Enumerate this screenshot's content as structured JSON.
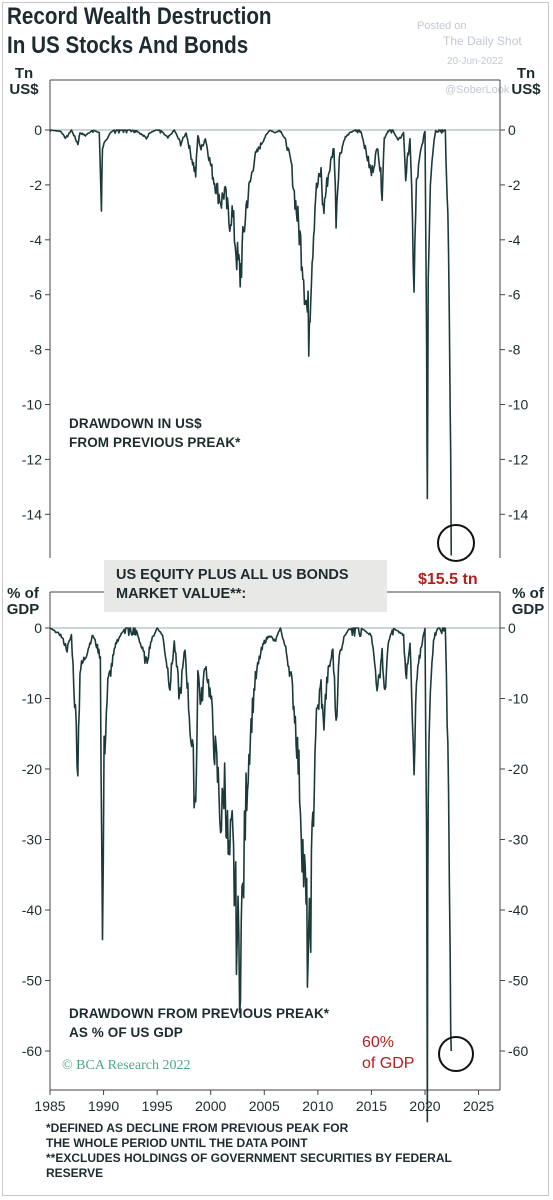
{
  "title_line1": "Record Wealth Destruction",
  "title_line2": "In US Stocks And Bonds",
  "watermark": {
    "posted": "Posted on",
    "source": "The Daily Shot",
    "date": "20-Jun-2022",
    "handle": "@SoberLook"
  },
  "top_panel": {
    "unit_line1": "Tn",
    "unit_line2": "US$",
    "label_line1": "DRAWDOWN IN US$",
    "label_line2": "FROM PREVIOUS PREAK*",
    "callout": "$15.5 tn"
  },
  "legend": {
    "line1": "US EQUITY PLUS ALL US BONDS",
    "line2": "MARKET VALUE**:"
  },
  "bottom_panel": {
    "unit_line1": "% of",
    "unit_line2": "GDP",
    "label_line1": "DRAWDOWN FROM PREVIOUS PREAK*",
    "label_line2": "AS % OF US GDP",
    "callout_line1": "60%",
    "callout_line2": "of GDP"
  },
  "credit": "© BCA Research 2022",
  "footnote1_line1": "*DEFINED AS DECLINE FROM PREVIOUS PEAK FOR",
  "footnote1_line2": "THE WHOLE PERIOD UNTIL THE DATA POINT",
  "footnote2_line1": "**EXCLUDES HOLDINGS OF GOVERNMENT SECURITIES BY FEDERAL",
  "footnote2_line2": "RESERVE",
  "colors": {
    "line": "#1d3a3a",
    "callout": "#b21f1f",
    "legend_bg": "#e8e8e6",
    "credit": "#4aa88a"
  },
  "chart_data": [
    {
      "type": "area",
      "name": "top",
      "title": "Record Wealth Destruction In US Stocks And Bonds",
      "ylabel": "Tn US$",
      "ylim": [
        -16,
        0.5
      ],
      "yticks": [
        0,
        -2,
        -4,
        -6,
        -8,
        -10,
        -12,
        -14
      ],
      "xlim": [
        1985,
        2027
      ],
      "xticks": [
        1985,
        1990,
        1995,
        2000,
        2005,
        2010,
        2015,
        2020,
        2025
      ],
      "series": [
        {
          "name": "US EQUITY PLUS ALL US BONDS MARKET VALUE",
          "x": [
            1985,
            1986,
            1986.5,
            1987.0,
            1987.6,
            1987.8,
            1988.3,
            1989.0,
            1989.6,
            1989.8,
            1989.9,
            1990.3,
            1990.6,
            1991.0,
            1992,
            1993,
            1994.0,
            1994.3,
            1994.9,
            1995.3,
            1996,
            1996.6,
            1997.2,
            1997.7,
            1998.1,
            1998.6,
            1998.8,
            1999.1,
            1999.5,
            1999.9,
            2000.3,
            2000.7,
            2001.0,
            2001.3,
            2001.7,
            2002.0,
            2002.5,
            2002.75,
            2003.0,
            2003.3,
            2003.7,
            2004.1,
            2004.6,
            2005.0,
            2005.5,
            2006.0,
            2006.5,
            2007.0,
            2007.5,
            2007.8,
            2008.2,
            2008.6,
            2008.9,
            2009.15,
            2009.4,
            2009.8,
            2010.3,
            2010.5,
            2010.9,
            2011.5,
            2011.7,
            2012.0,
            2012.5,
            2013.0,
            2013.5,
            2014.0,
            2015.0,
            2015.6,
            2016.0,
            2016.2,
            2016.6,
            2017.0,
            2017.5,
            2018.0,
            2018.2,
            2018.6,
            2018.98,
            2019.2,
            2019.6,
            2020.0,
            2020.15,
            2020.22,
            2020.3,
            2020.5,
            2020.8,
            2021.0,
            2021.5,
            2021.9,
            2022.0,
            2022.2,
            2022.35,
            2022.45
          ],
          "values": [
            0,
            -0.05,
            -0.3,
            0,
            -0.5,
            -0.1,
            -0.2,
            0,
            -0.1,
            -2.7,
            -0.6,
            -0.4,
            -0.1,
            0,
            0,
            0,
            -0.3,
            -0.1,
            0,
            0,
            -0.3,
            0,
            -0.5,
            -0.1,
            -0.8,
            -1.6,
            -0.2,
            -0.7,
            -0.3,
            -1.1,
            -1.8,
            -2.3,
            -2.6,
            -2.2,
            -3.3,
            -3.0,
            -4.8,
            -5.3,
            -4.2,
            -2.8,
            -1.9,
            -1.0,
            -0.6,
            -0.3,
            0,
            -0.1,
            0,
            -0.4,
            -1.2,
            -2.3,
            -3.5,
            -4.8,
            -6.2,
            -7.2,
            -5.0,
            -2.3,
            -1.5,
            -3.0,
            -1.8,
            -0.6,
            -3.1,
            -1.0,
            -0.3,
            -0.1,
            0,
            0,
            -1.6,
            -0.6,
            -2.2,
            -0.3,
            0,
            0,
            -0.4,
            -0.1,
            -1.7,
            -0.3,
            -5.6,
            -2.0,
            -0.8,
            0,
            -7.5,
            -12.8,
            -5.0,
            -1.8,
            -0.5,
            0,
            0,
            0,
            -1.8,
            -4.3,
            -10.5,
            -15.5
          ]
        }
      ]
    },
    {
      "type": "area",
      "name": "bottom",
      "ylabel": "% of GDP",
      "ylim": [
        -65,
        1
      ],
      "yticks": [
        0,
        -10,
        -20,
        -30,
        -40,
        -50,
        -60
      ],
      "xlim": [
        1985,
        2027
      ],
      "xticks": [
        1985,
        1990,
        1995,
        2000,
        2005,
        2010,
        2015,
        2020,
        2025
      ],
      "series": [
        {
          "name": "DRAWDOWN FROM PREVIOUS PREAK AS % OF US GDP",
          "x": [
            1985,
            1986,
            1986.6,
            1987.0,
            1987.6,
            1987.8,
            1988.3,
            1989.0,
            1989.7,
            1989.9,
            1990.05,
            1990.4,
            1990.8,
            1991.2,
            1992,
            1993,
            1994.0,
            1994.4,
            1995.0,
            1995.5,
            1996.2,
            1996.6,
            1997.1,
            1997.6,
            1998.0,
            1998.6,
            1998.8,
            1999.1,
            1999.5,
            2000.0,
            2000.3,
            2000.7,
            2001.0,
            2001.3,
            2001.7,
            2002.0,
            2002.4,
            2002.7,
            2003.0,
            2003.3,
            2003.7,
            2004.1,
            2004.6,
            2005.0,
            2005.5,
            2006.0,
            2006.5,
            2007.0,
            2007.5,
            2007.9,
            2008.3,
            2008.6,
            2008.9,
            2009.15,
            2009.4,
            2009.8,
            2010.3,
            2010.5,
            2010.9,
            2011.4,
            2011.7,
            2012.0,
            2012.5,
            2013.0,
            2014.0,
            2015.0,
            2015.6,
            2016.0,
            2016.2,
            2016.6,
            2017.0,
            2018.0,
            2018.2,
            2018.6,
            2018.98,
            2019.2,
            2019.6,
            2020.0,
            2020.15,
            2020.22,
            2020.3,
            2020.5,
            2020.8,
            2021.0,
            2021.5,
            2021.9,
            2022.0,
            2022.2,
            2022.35,
            2022.45
          ],
          "values": [
            0,
            -1.0,
            -3.0,
            -1.0,
            -19.0,
            -6.0,
            -4.0,
            -1.0,
            -4.0,
            -46.5,
            -18.0,
            -8.0,
            -5.0,
            -2.0,
            0,
            0,
            -5.0,
            -2.0,
            0,
            -1.0,
            -8.0,
            -2.0,
            -10.0,
            -3.0,
            -12.0,
            -25.0,
            -6.0,
            -11.0,
            -5.0,
            -10.0,
            -16.0,
            -22.0,
            -28.0,
            -21.0,
            -34.0,
            -30.0,
            -42.0,
            -47.5,
            -38.0,
            -24.0,
            -15.0,
            -8.0,
            -4.0,
            -2.0,
            -1.0,
            -2.0,
            0,
            -3.0,
            -7.0,
            -13.0,
            -22.0,
            -32.0,
            -40.0,
            -49.5,
            -36.0,
            -14.0,
            -8.0,
            -14.0,
            -7.0,
            -3.0,
            -13.0,
            -4.0,
            -1.0,
            0,
            0,
            -1.0,
            -9.0,
            -3.0,
            -10.0,
            -2.0,
            0,
            -1.0,
            -7.0,
            -2.0,
            -22.0,
            -8.0,
            -3.0,
            0,
            -34.0,
            -60.0,
            -23.0,
            -8.0,
            -2.0,
            0,
            0,
            0,
            -8.0,
            -21.0,
            -42.0,
            -60.0
          ]
        }
      ]
    }
  ]
}
